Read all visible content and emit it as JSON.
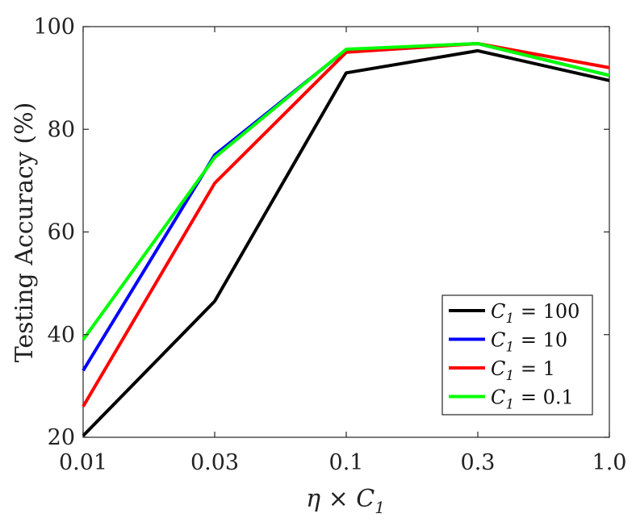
{
  "chart_data": {
    "type": "line",
    "x": [
      "0.01",
      "0.03",
      "0.1",
      "0.3",
      "1.0"
    ],
    "xlabel": "η × C1",
    "xlabel_parts": {
      "main": "η × C",
      "sub": "1"
    },
    "ylabel": "Testing Accuracy (%)",
    "ylim": [
      20,
      100
    ],
    "yticks": [
      "20",
      "40",
      "60",
      "80",
      "100"
    ],
    "grid": false,
    "legend_position": "bottom-right",
    "series": [
      {
        "name": "C1 = 100",
        "legend_main": "C",
        "legend_sub": "1",
        "legend_rest": " = 100",
        "color": "#000000",
        "values": [
          20.3,
          46.5,
          91.0,
          95.3,
          89.5
        ]
      },
      {
        "name": "C1 = 10",
        "legend_main": "C",
        "legend_sub": "1",
        "legend_rest": " = 10",
        "color": "#0000ff",
        "values": [
          33.0,
          75.0,
          95.5,
          96.7,
          90.5
        ]
      },
      {
        "name": "C1 = 1",
        "legend_main": "C",
        "legend_sub": "1",
        "legend_rest": " = 1",
        "color": "#ff0000",
        "values": [
          26.0,
          69.5,
          95.0,
          96.7,
          92.0
        ]
      },
      {
        "name": "C1 = 0.1",
        "legend_main": "C",
        "legend_sub": "1",
        "legend_rest": " = 0.1",
        "color": "#00ff00",
        "values": [
          39.0,
          74.5,
          95.6,
          96.7,
          90.5
        ]
      }
    ]
  }
}
